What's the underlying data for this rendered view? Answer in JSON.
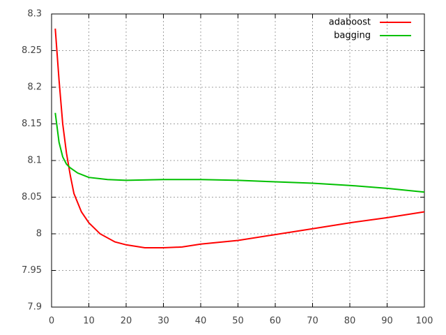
{
  "chart_data": {
    "type": "line",
    "series": [
      {
        "name": "adaboost",
        "color": "#ff0000",
        "x": [
          1,
          2,
          3,
          4,
          5,
          6,
          8,
          10,
          13,
          17,
          20,
          25,
          30,
          35,
          40,
          50,
          60,
          70,
          80,
          90,
          100
        ],
        "values": [
          8.28,
          8.21,
          8.15,
          8.11,
          8.08,
          8.055,
          8.03,
          8.015,
          8.0,
          7.989,
          7.985,
          7.981,
          7.981,
          7.982,
          7.986,
          7.991,
          7.999,
          8.007,
          8.015,
          8.022,
          8.03
        ]
      },
      {
        "name": "bagging",
        "color": "#00c000",
        "x": [
          1,
          2,
          3,
          4,
          5,
          7,
          10,
          15,
          20,
          30,
          40,
          50,
          60,
          70,
          80,
          90,
          100
        ],
        "values": [
          8.165,
          8.125,
          8.105,
          8.095,
          8.09,
          8.083,
          8.077,
          8.074,
          8.073,
          8.074,
          8.074,
          8.073,
          8.071,
          8.069,
          8.066,
          8.062,
          8.057
        ]
      }
    ],
    "xlim": [
      0,
      100
    ],
    "xticks": [
      0,
      10,
      20,
      30,
      40,
      50,
      60,
      70,
      80,
      90,
      100
    ],
    "ylim": [
      7.9,
      8.3
    ],
    "yticks": [
      7.9,
      7.95,
      8,
      8.05,
      8.1,
      8.15,
      8.2,
      8.25,
      8.3
    ],
    "grid": true,
    "legend": "top-right"
  }
}
